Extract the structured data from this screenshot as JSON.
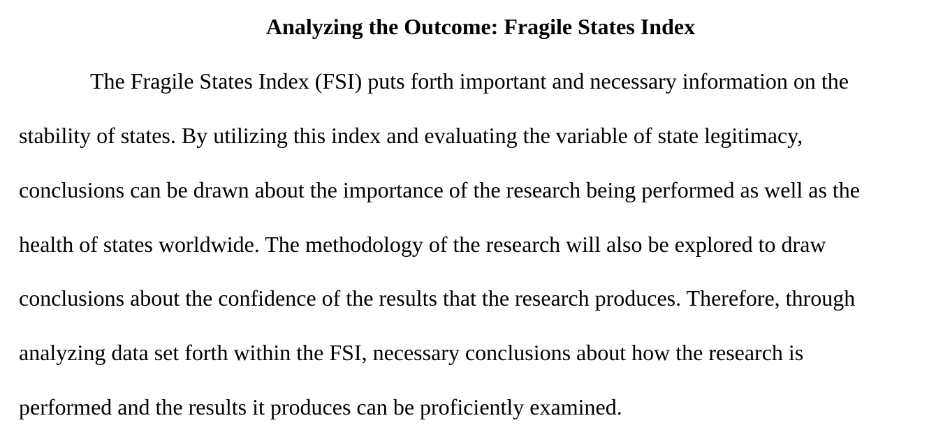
{
  "document": {
    "title": "Analyzing the Outcome: Fragile States Index",
    "paragraph_lines": [
      "The Fragile States Index (FSI) puts forth important and necessary information on the",
      "stability of states. By utilizing this index and evaluating the variable of state legitimacy,",
      "conclusions can be drawn about the importance of the research being performed as well as the",
      "health of states worldwide. The methodology of the research will also be explored to draw",
      "conclusions about the confidence of the results that the research produces. Therefore, through",
      "analyzing data set forth within the FSI, necessary conclusions about how the research is",
      "performed and the results it produces can be proficiently examined."
    ]
  }
}
